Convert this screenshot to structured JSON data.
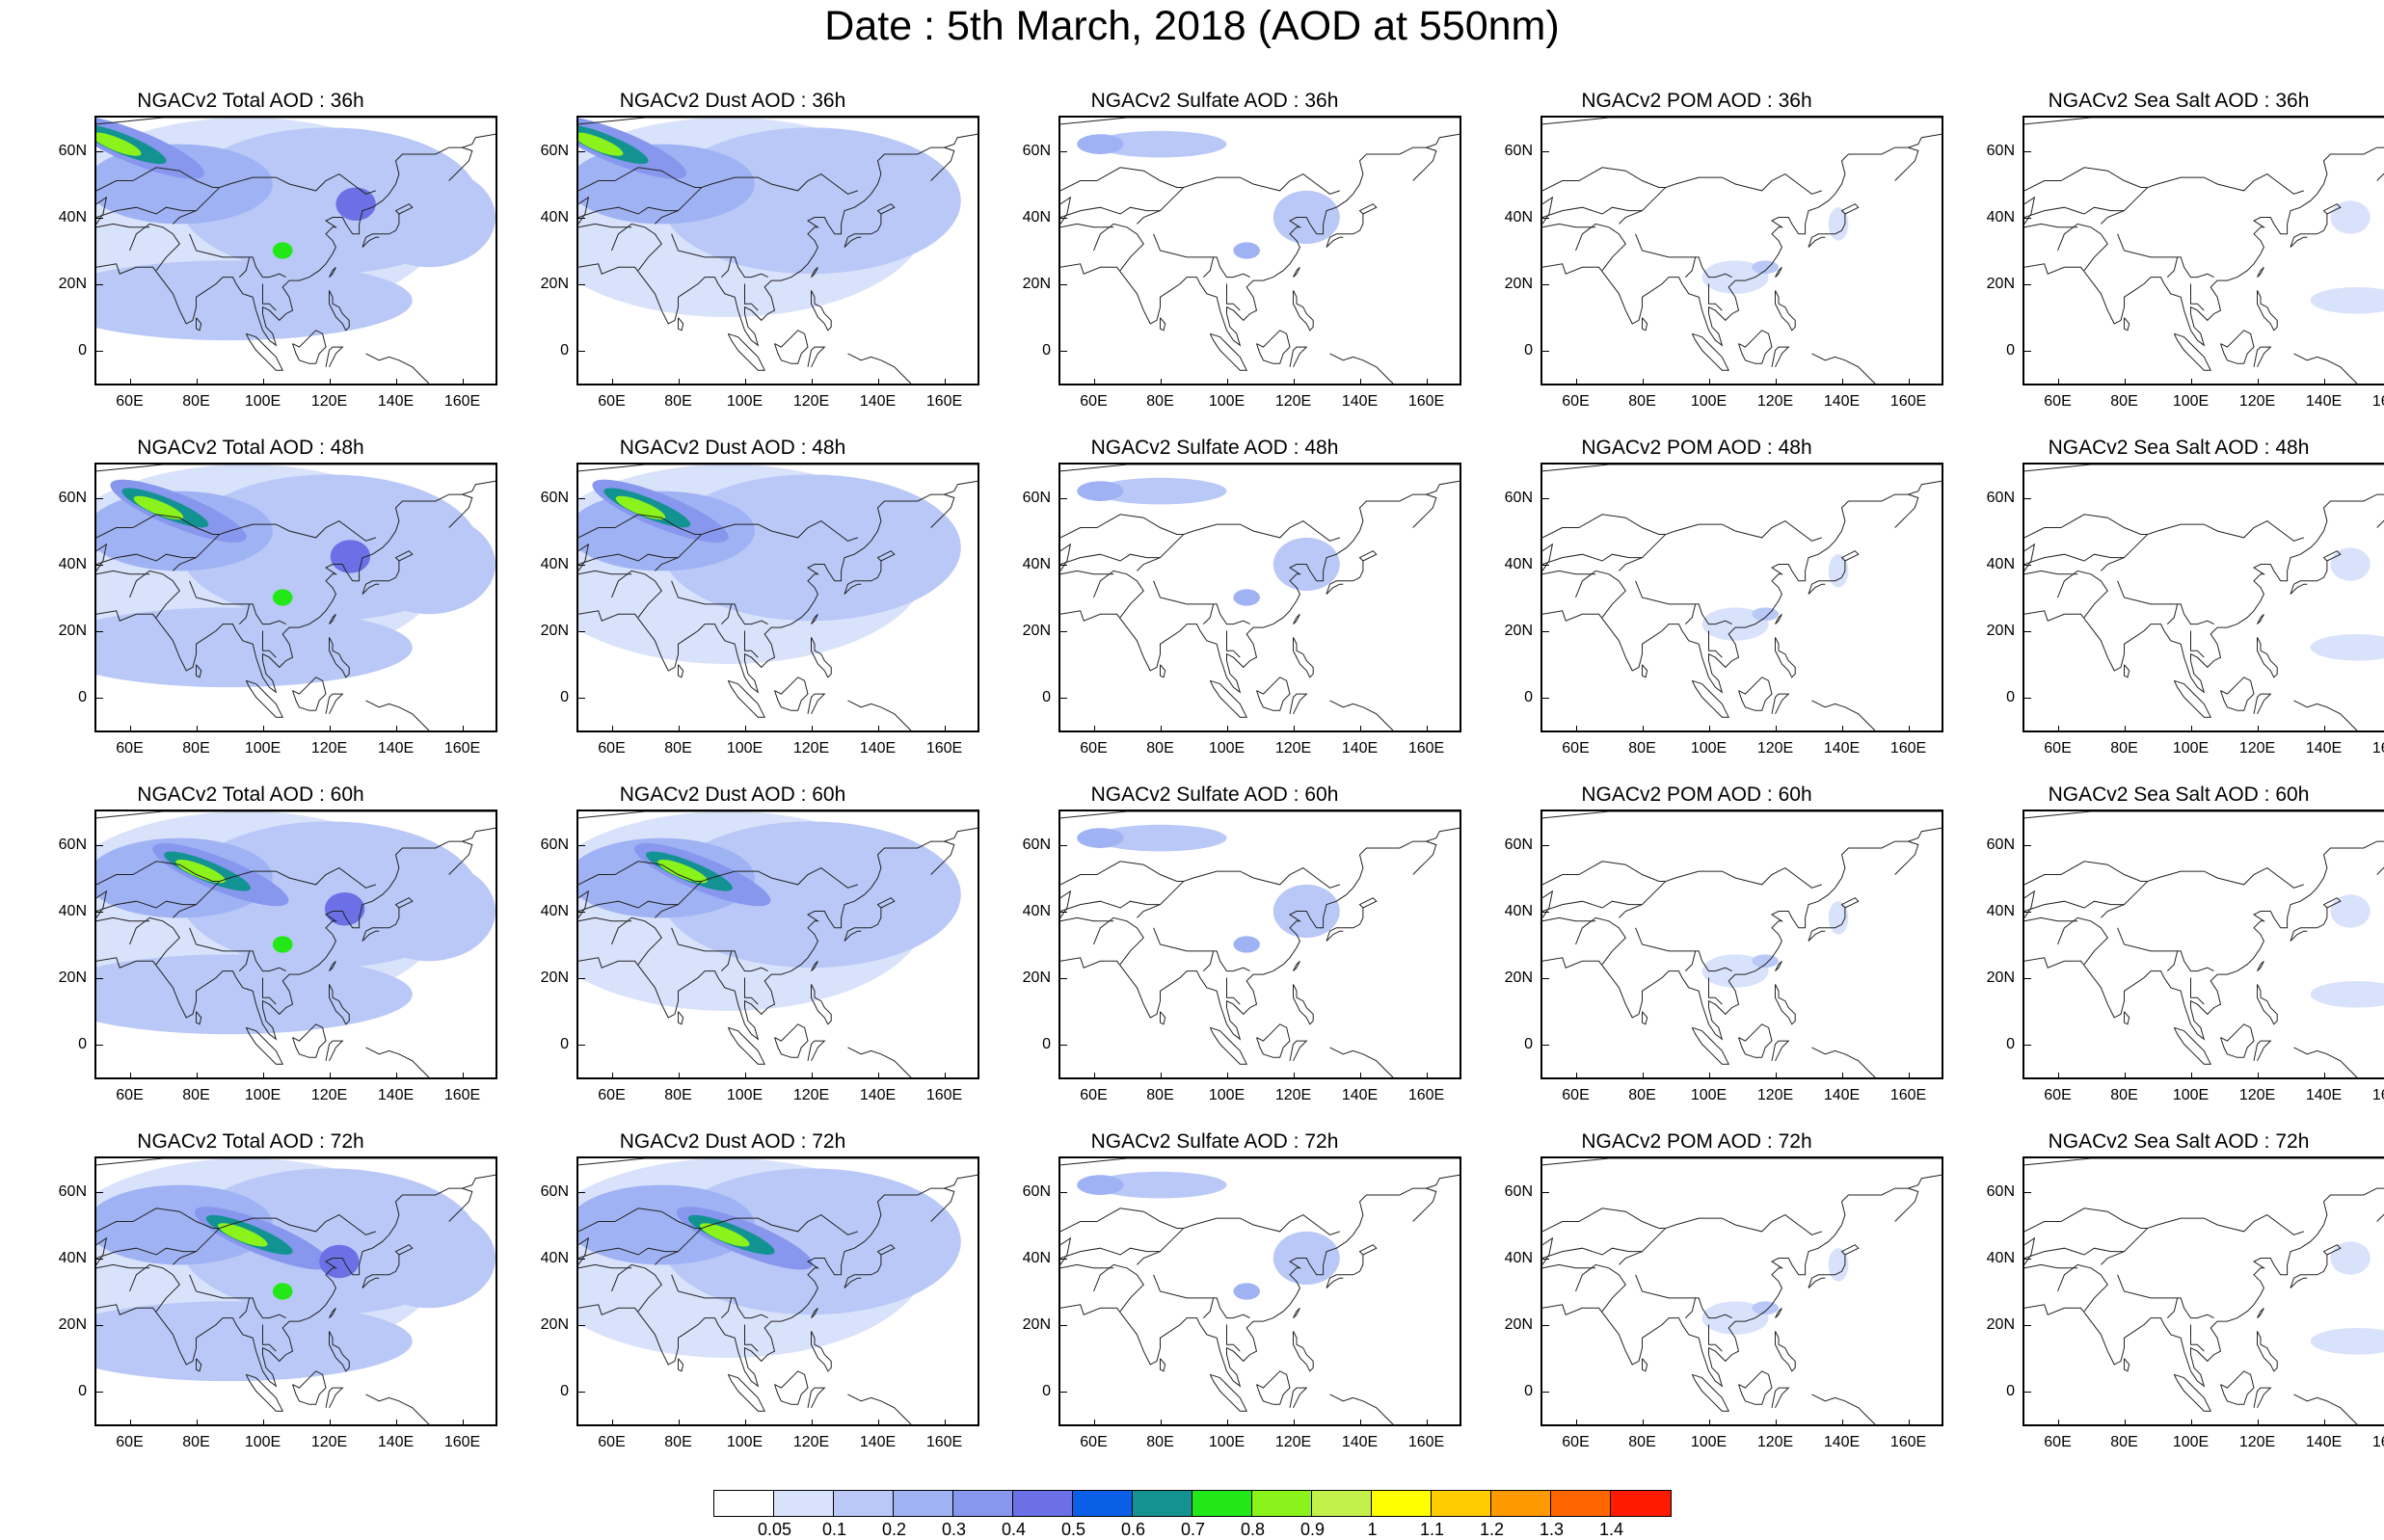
{
  "title": "Date : 5th March, 2018 (AOD at 550nm)",
  "axes": {
    "lat_labels": [
      "60N",
      "40N",
      "20N",
      "0"
    ],
    "lat_values": [
      60,
      40,
      20,
      0
    ],
    "lon_labels": [
      "60E",
      "80E",
      "100E",
      "120E",
      "140E",
      "160E"
    ],
    "lon_values": [
      60,
      80,
      100,
      120,
      140,
      160
    ],
    "lon_range": [
      50,
      170
    ],
    "lat_range": [
      -10,
      70
    ]
  },
  "panels": [
    {
      "title": "NGACv2 Total AOD : 36h",
      "species": "total",
      "hour": 36
    },
    {
      "title": "NGACv2 Dust AOD : 36h",
      "species": "dust",
      "hour": 36
    },
    {
      "title": "NGACv2 Sulfate AOD : 36h",
      "species": "sulfate",
      "hour": 36
    },
    {
      "title": "NGACv2 POM AOD : 36h",
      "species": "pom",
      "hour": 36
    },
    {
      "title": "NGACv2 Sea Salt AOD : 36h",
      "species": "seasalt",
      "hour": 36
    },
    {
      "title": "NGACv2 Total AOD : 48h",
      "species": "total",
      "hour": 48
    },
    {
      "title": "NGACv2 Dust AOD : 48h",
      "species": "dust",
      "hour": 48
    },
    {
      "title": "NGACv2 Sulfate AOD : 48h",
      "species": "sulfate",
      "hour": 48
    },
    {
      "title": "NGACv2 POM AOD : 48h",
      "species": "pom",
      "hour": 48
    },
    {
      "title": "NGACv2 Sea Salt AOD : 48h",
      "species": "seasalt",
      "hour": 48
    },
    {
      "title": "NGACv2 Total AOD : 60h",
      "species": "total",
      "hour": 60
    },
    {
      "title": "NGACv2 Dust AOD : 60h",
      "species": "dust",
      "hour": 60
    },
    {
      "title": "NGACv2 Sulfate AOD : 60h",
      "species": "sulfate",
      "hour": 60
    },
    {
      "title": "NGACv2 POM AOD : 60h",
      "species": "pom",
      "hour": 60
    },
    {
      "title": "NGACv2 Sea Salt AOD : 60h",
      "species": "seasalt",
      "hour": 60
    },
    {
      "title": "NGACv2 Total AOD : 72h",
      "species": "total",
      "hour": 72
    },
    {
      "title": "NGACv2 Dust AOD : 72h",
      "species": "dust",
      "hour": 72
    },
    {
      "title": "NGACv2 Sulfate AOD : 72h",
      "species": "sulfate",
      "hour": 72
    },
    {
      "title": "NGACv2 POM AOD : 72h",
      "species": "pom",
      "hour": 72
    },
    {
      "title": "NGACv2 Sea Salt  AOD : 72h",
      "species": "seasalt",
      "hour": 72
    }
  ],
  "colorbar": {
    "labels": [
      "0.05",
      "0.1",
      "0.2",
      "0.3",
      "0.4",
      "0.5",
      "0.6",
      "0.7",
      "0.8",
      "0.9",
      "1",
      "1.1",
      "1.2",
      "1.3",
      "1.4"
    ],
    "colors": [
      "#ffffff",
      "#d9e2fb",
      "#b9c8f7",
      "#9fb2f4",
      "#8797ee",
      "#6b70e6",
      "#0b5fe6",
      "#139292",
      "#22e817",
      "#8bf21c",
      "#c3f04a",
      "#ffff00",
      "#ffcc00",
      "#ff9900",
      "#ff6600",
      "#ff1a00"
    ]
  }
}
